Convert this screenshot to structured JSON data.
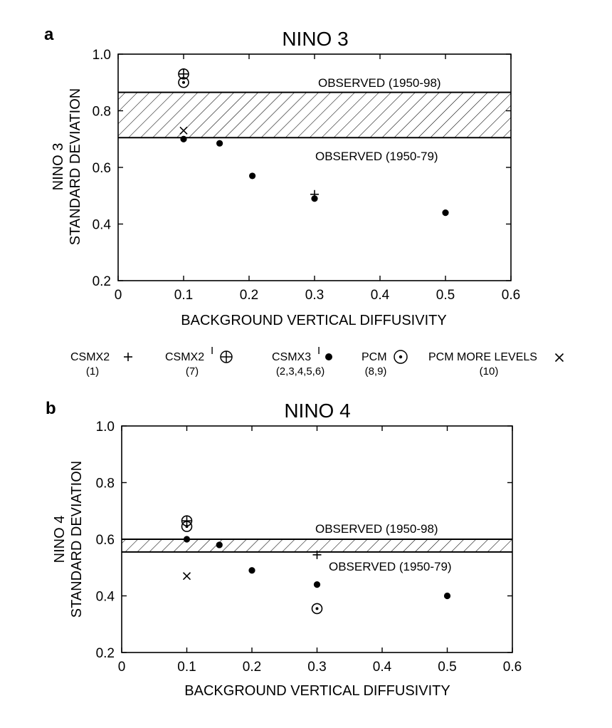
{
  "legend": [
    {
      "series": "CSMX2",
      "label": "CSMX2",
      "sup": "",
      "runs": "(1)",
      "marker": "plus"
    },
    {
      "series": "CSMX2prime",
      "label": "CSMX2",
      "sup": "I",
      "runs": "(7)",
      "marker": "circle-plus"
    },
    {
      "series": "CSMX3prime",
      "label": "CSMX3",
      "sup": "I",
      "runs": "(2,3,4,5,6)",
      "marker": "dot"
    },
    {
      "series": "PCM",
      "label": "PCM",
      "sup": "",
      "runs": "(8,9)",
      "marker": "circle-dot"
    },
    {
      "series": "PCM_MORE",
      "label": "PCM MORE LEVELS",
      "sup": "",
      "runs": "(10)",
      "marker": "x"
    }
  ],
  "chart_data": [
    {
      "panel": "a",
      "type": "scatter",
      "title": "NINO 3",
      "xlabel": "BACKGROUND VERTICAL DIFFUSIVITY",
      "ylabel": [
        "NINO 3",
        "STANDARD DEVIATION"
      ],
      "xlim": [
        0,
        0.6
      ],
      "ylim": [
        0.2,
        1.0
      ],
      "xticks": [
        0,
        0.1,
        0.2,
        0.3,
        0.4,
        0.5,
        0.6
      ],
      "yticks": [
        0.2,
        0.4,
        0.6,
        0.8,
        1.0
      ],
      "xtick_labels": [
        "0",
        "0.1",
        "0.2",
        "0.3",
        "0.4",
        "0.5",
        "0.6"
      ],
      "ytick_labels": [
        "0.2",
        "0.4",
        "0.6",
        "0.8",
        "1.0"
      ],
      "observed_band": {
        "low": 0.705,
        "high": 0.865,
        "low_label": "OBSERVED (1950-79)",
        "high_label": "OBSERVED (1950-98)"
      },
      "series": [
        {
          "name": "CSMX2",
          "points": [
            [
              0.3,
              0.505
            ]
          ]
        },
        {
          "name": "CSMX2prime",
          "points": [
            [
              0.1,
              0.93
            ]
          ]
        },
        {
          "name": "CSMX3prime",
          "points": [
            [
              0.1,
              0.7
            ],
            [
              0.155,
              0.685
            ],
            [
              0.205,
              0.57
            ],
            [
              0.3,
              0.49
            ],
            [
              0.5,
              0.44
            ]
          ]
        },
        {
          "name": "PCM",
          "points": [
            [
              0.1,
              0.9
            ]
          ]
        },
        {
          "name": "PCM_MORE",
          "points": [
            [
              0.1,
              0.73
            ]
          ]
        }
      ]
    },
    {
      "panel": "b",
      "type": "scatter",
      "title": "NINO 4",
      "xlabel": "BACKGROUND VERTICAL DIFFUSIVITY",
      "ylabel": [
        "NINO 4",
        "STANDARD DEVIATION"
      ],
      "xlim": [
        0,
        0.6
      ],
      "ylim": [
        0.2,
        1.0
      ],
      "xticks": [
        0,
        0.1,
        0.2,
        0.3,
        0.4,
        0.5,
        0.6
      ],
      "yticks": [
        0.2,
        0.4,
        0.6,
        0.8,
        1.0
      ],
      "xtick_labels": [
        "0",
        "0.1",
        "0.2",
        "0.3",
        "0.4",
        "0.5",
        "0.6"
      ],
      "ytick_labels": [
        "0.2",
        "0.4",
        "0.6",
        "0.8",
        "1.0"
      ],
      "observed_band": {
        "low": 0.555,
        "high": 0.6,
        "low_label": "OBSERVED (1950-79)",
        "high_label": "OBSERVED (1950-98)"
      },
      "series": [
        {
          "name": "CSMX2",
          "points": [
            [
              0.3,
              0.545
            ]
          ]
        },
        {
          "name": "CSMX2prime",
          "points": [
            [
              0.1,
              0.665
            ]
          ]
        },
        {
          "name": "CSMX3prime",
          "points": [
            [
              0.1,
              0.6
            ],
            [
              0.15,
              0.58
            ],
            [
              0.2,
              0.49
            ],
            [
              0.3,
              0.44
            ],
            [
              0.5,
              0.4
            ]
          ]
        },
        {
          "name": "PCM",
          "points": [
            [
              0.1,
              0.645
            ],
            [
              0.3,
              0.355
            ]
          ]
        },
        {
          "name": "PCM_MORE",
          "points": [
            [
              0.1,
              0.47
            ]
          ]
        }
      ]
    }
  ]
}
